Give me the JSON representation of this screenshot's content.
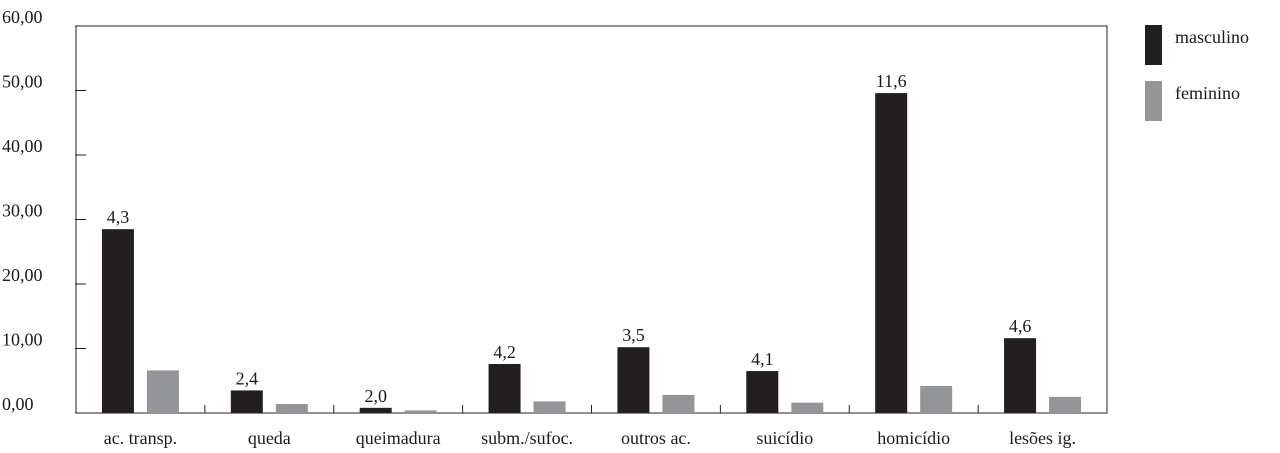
{
  "chart_data": {
    "type": "bar",
    "title": "",
    "xlabel": "",
    "ylabel": "",
    "ylim": [
      0,
      60
    ],
    "yticks": [
      0,
      10,
      20,
      30,
      40,
      50,
      60
    ],
    "ytick_labels": [
      "0,00",
      "10,00",
      "20,00",
      "30,00",
      "40,00",
      "50,00",
      "60,00"
    ],
    "categories": [
      "ac. transp.",
      "queda",
      "queimadura",
      "subm./sufoc.",
      "outros ac.",
      "suicídio",
      "homicídio",
      "lesões ig."
    ],
    "series": [
      {
        "name": "masculino",
        "color": "#231f20",
        "values": [
          28.5,
          3.5,
          0.8,
          7.6,
          10.2,
          6.5,
          49.6,
          11.6
        ],
        "labels": [
          "4,3",
          "2,4",
          "2,0",
          "4,2",
          "3,5",
          "4,1",
          "11,6",
          "4,6"
        ]
      },
      {
        "name": "feminino",
        "color": "#939598",
        "values": [
          6.6,
          1.4,
          0.4,
          1.8,
          2.8,
          1.6,
          4.2,
          2.5
        ],
        "labels": []
      }
    ],
    "legend_position": "right",
    "grid": false
  }
}
